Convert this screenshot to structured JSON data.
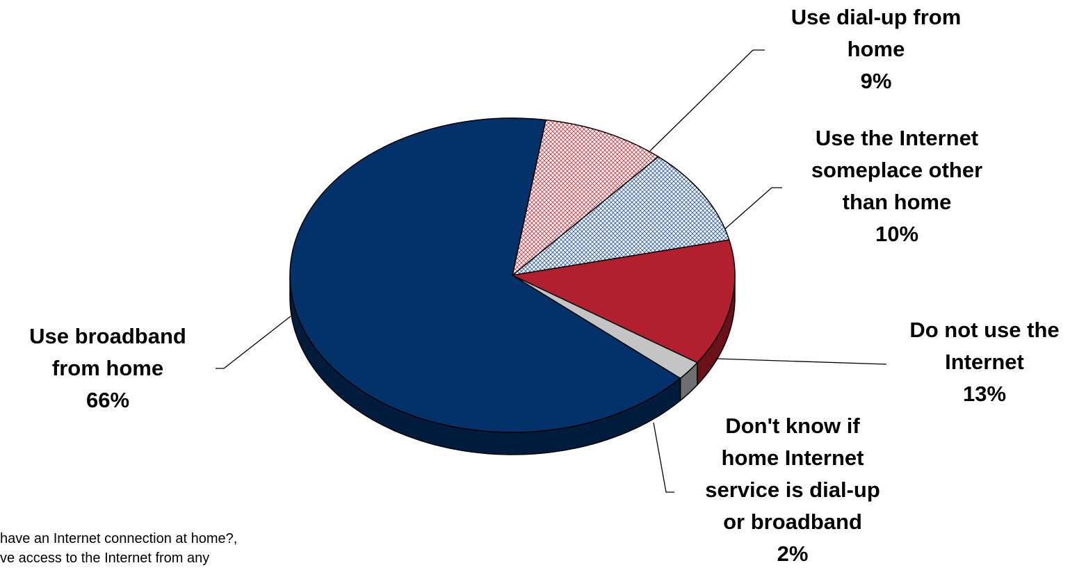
{
  "chart_data": {
    "type": "pie",
    "title": "",
    "slices": [
      {
        "label_lines": [
          "Use dial-up from",
          "home"
        ],
        "value": 9,
        "value_text": "9%",
        "color": "#e2a5a8",
        "pattern": "crosshatch"
      },
      {
        "label_lines": [
          "Use the Internet",
          "someplace other",
          "than home"
        ],
        "value": 10,
        "value_text": "10%",
        "color": "#b3c6e2",
        "pattern": "crosshatch"
      },
      {
        "label_lines": [
          "Do not use the",
          "Internet"
        ],
        "value": 13,
        "value_text": "13%",
        "color": "#b21f2f",
        "pattern": "solid"
      },
      {
        "label_lines": [
          "Don't know if",
          "home Internet",
          "service is dial-up",
          "or broadband"
        ],
        "value": 2,
        "value_text": "2%",
        "color": "#c4c4c4",
        "pattern": "solid"
      },
      {
        "label_lines": [
          "Use broadband",
          "from home"
        ],
        "value": 66,
        "value_text": "66%",
        "color": "#03326b",
        "pattern": "solid"
      }
    ]
  },
  "footnote": {
    "line1": "have an Internet connection at home?,",
    "line2": "ve access to the Internet from any"
  }
}
